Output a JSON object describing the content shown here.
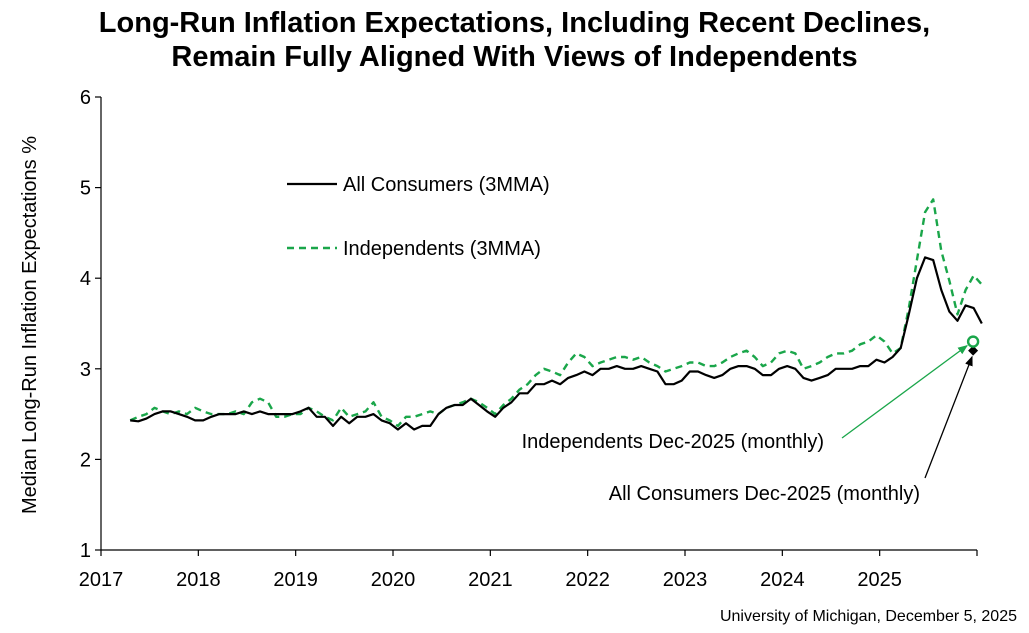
{
  "chart_data": {
    "type": "line",
    "title_line1": "Long-Run Inflation Expectations, Including Recent Declines,",
    "title_line2": "Remain Fully Aligned With Views of Independents",
    "ylabel": "Median Long-Run Inflation Expectations %",
    "xlabel": "",
    "ylim": [
      1,
      6
    ],
    "yticks": [
      "1",
      "2",
      "3",
      "4",
      "5",
      "6"
    ],
    "xlim": [
      2017,
      2026
    ],
    "xticks": [
      "2017",
      "2018",
      "2019",
      "2020",
      "2021",
      "2022",
      "2023",
      "2024",
      "2025"
    ],
    "legend": {
      "all": "All Consumers (3MMA)",
      "ind": "Independents (3MMA)"
    },
    "colors": {
      "all": "#000000",
      "ind": "#1aa64a"
    },
    "source": "University of Michigan, December 5, 2025",
    "series": [
      {
        "name": "All Consumers (3MMA)",
        "start": 2017.3,
        "step": 0.08333,
        "values": [
          2.43,
          2.42,
          2.45,
          2.5,
          2.53,
          2.53,
          2.5,
          2.47,
          2.43,
          2.43,
          2.47,
          2.5,
          2.5,
          2.5,
          2.53,
          2.5,
          2.53,
          2.5,
          2.5,
          2.5,
          2.5,
          2.53,
          2.57,
          2.47,
          2.47,
          2.37,
          2.47,
          2.4,
          2.47,
          2.47,
          2.5,
          2.43,
          2.4,
          2.33,
          2.4,
          2.33,
          2.37,
          2.37,
          2.5,
          2.57,
          2.6,
          2.6,
          2.67,
          2.6,
          2.53,
          2.47,
          2.57,
          2.63,
          2.73,
          2.73,
          2.83,
          2.83,
          2.87,
          2.83,
          2.9,
          2.93,
          2.97,
          2.93,
          3.0,
          3.0,
          3.03,
          3.0,
          3.0,
          3.03,
          3.0,
          2.97,
          2.83,
          2.83,
          2.87,
          2.97,
          2.97,
          2.93,
          2.9,
          2.93,
          3.0,
          3.03,
          3.03,
          3.0,
          2.93,
          2.93,
          3.0,
          3.03,
          3.0,
          2.9,
          2.87,
          2.9,
          2.93,
          3.0,
          3.0,
          3.0,
          3.03,
          3.03,
          3.1,
          3.07,
          3.13,
          3.23,
          3.6,
          4.0,
          4.23,
          4.2,
          3.87,
          3.63,
          3.53,
          3.7,
          3.67,
          3.5
        ]
      },
      {
        "name": "Independents (3MMA)",
        "start": 2017.3,
        "step": 0.08333,
        "values": [
          2.43,
          2.47,
          2.5,
          2.57,
          2.53,
          2.5,
          2.53,
          2.5,
          2.57,
          2.53,
          2.5,
          2.5,
          2.5,
          2.53,
          2.5,
          2.63,
          2.67,
          2.63,
          2.47,
          2.47,
          2.5,
          2.5,
          2.57,
          2.53,
          2.47,
          2.43,
          2.57,
          2.47,
          2.5,
          2.53,
          2.63,
          2.47,
          2.43,
          2.37,
          2.47,
          2.47,
          2.5,
          2.53,
          2.5,
          2.57,
          2.6,
          2.63,
          2.67,
          2.63,
          2.57,
          2.5,
          2.6,
          2.67,
          2.77,
          2.83,
          2.93,
          3.0,
          2.97,
          2.93,
          3.07,
          3.17,
          3.13,
          3.03,
          3.07,
          3.1,
          3.13,
          3.13,
          3.1,
          3.13,
          3.07,
          3.03,
          2.97,
          3.0,
          3.03,
          3.07,
          3.07,
          3.03,
          3.03,
          3.07,
          3.13,
          3.17,
          3.2,
          3.13,
          3.03,
          3.07,
          3.17,
          3.2,
          3.17,
          3.0,
          3.03,
          3.07,
          3.13,
          3.17,
          3.17,
          3.2,
          3.27,
          3.3,
          3.37,
          3.3,
          3.17,
          3.23,
          3.67,
          4.2,
          4.73,
          4.87,
          4.3,
          3.97,
          3.6,
          3.87,
          4.03,
          3.93
        ]
      }
    ],
    "points": [
      {
        "name": "Independents Dec-2025 (monthly)",
        "x": 2025.96,
        "y": 3.3,
        "label": "Independents Dec-2025 (monthly)",
        "marker": "open-circle"
      },
      {
        "name": "All Consumers Dec-2025 (monthly)",
        "x": 2025.96,
        "y": 3.2,
        "label": "All Consumers Dec-2025 (monthly)",
        "marker": "diamond"
      }
    ]
  }
}
